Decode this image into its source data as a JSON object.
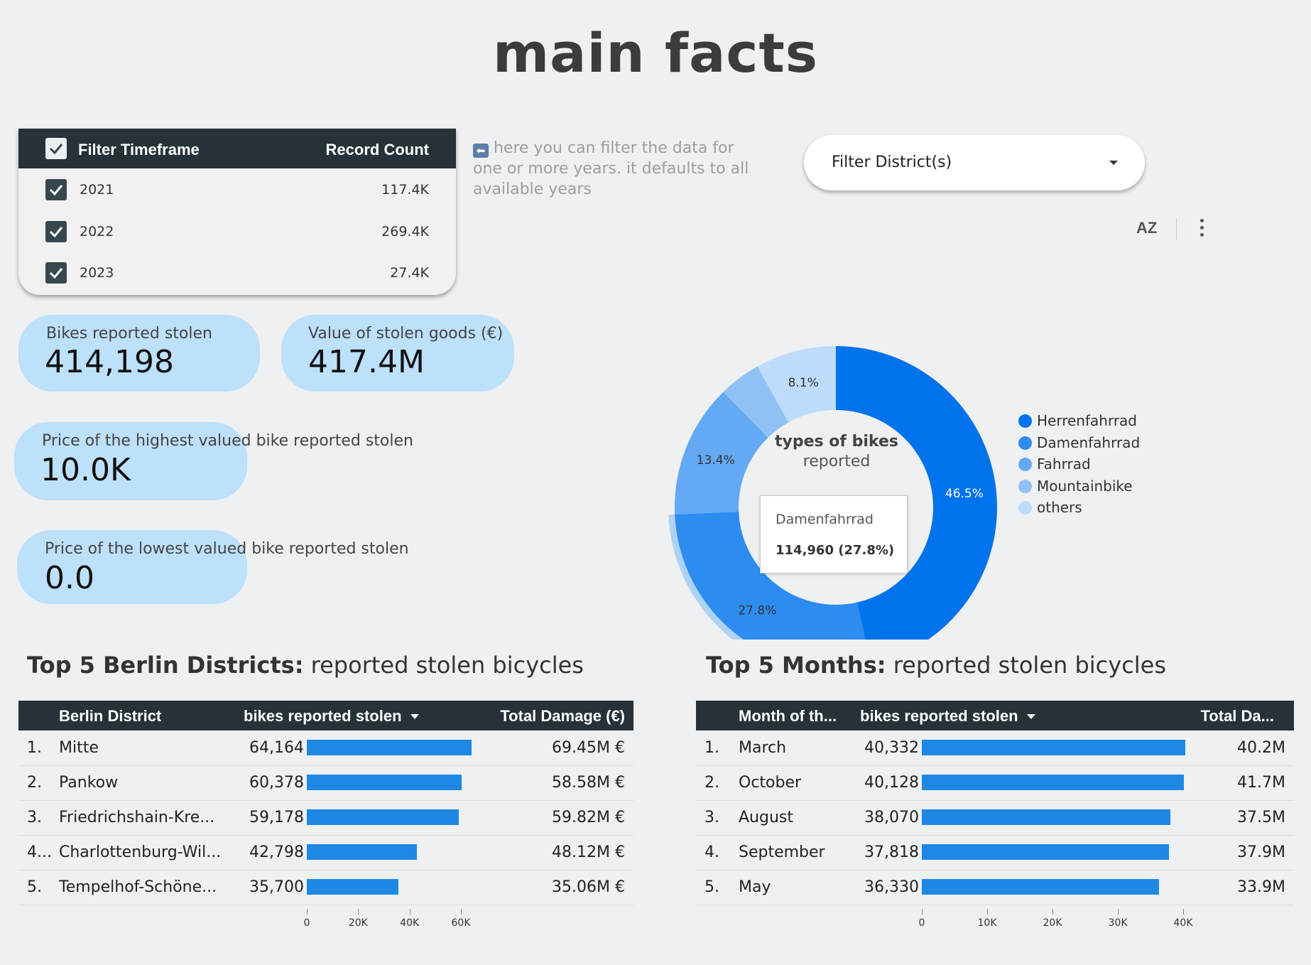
{
  "title": "main facts",
  "timeframe": {
    "header_label": "Filter Timeframe",
    "header_count": "Record Count",
    "rows": [
      {
        "label": "2021",
        "count": "117.4K"
      },
      {
        "label": "2022",
        "count": "269.4K"
      },
      {
        "label": "2023",
        "count": "27.4K"
      }
    ]
  },
  "hint": {
    "arrow": "⬅",
    "text": " here you can filter the data for one or more years. it defaults to all available years"
  },
  "district_filter": {
    "label": "Filter District(s)"
  },
  "toolbar": {
    "sort_icon": "sort-az-icon",
    "sort_glyph": "AZ",
    "more_icon": "more-vert-icon"
  },
  "kpis": {
    "stolen": {
      "label": "Bikes reported stolen",
      "value": "414,198"
    },
    "value": {
      "label": "Value of stolen goods (€)",
      "value": "417.4M"
    },
    "highest": {
      "label": "Price of the highest valued bike reported stolen",
      "value": "10.0K"
    },
    "lowest": {
      "label": "Price of the lowest valued bike reported stolen",
      "value": "0.0"
    }
  },
  "chart_data": [
    {
      "type": "pie",
      "title_bold": "types of bikes",
      "title_rest": "reported",
      "legend_position": "right",
      "slices": [
        {
          "name": "Herrenfahrrad",
          "value": 46.5,
          "label": "46.5%",
          "color": "#0072eb"
        },
        {
          "name": "Damenfahrrad",
          "value": 27.8,
          "label": "27.8%",
          "color": "#2d8cf0"
        },
        {
          "name": "Fahrrad",
          "value": 13.4,
          "label": "13.4%",
          "color": "#63a9f3"
        },
        {
          "name": "Mountainbike",
          "value": 4.2,
          "label": "",
          "color": "#8fc1f6"
        },
        {
          "name": "others",
          "value": 8.1,
          "label": "8.1%",
          "color": "#bcdcfa"
        }
      ],
      "highlighted": "Damenfahrrad",
      "tooltip": {
        "name": "Damenfahrrad",
        "value": "114,960 (27.8%)"
      }
    },
    {
      "type": "table",
      "title_bold": "Top 5 Berlin Districts:",
      "title_rest": " reported stolen bicycles",
      "columns": [
        "Berlin District",
        "bikes reported stolen",
        "Total Damage (€)"
      ],
      "rows": [
        {
          "rank": "1.",
          "name": "Mitte",
          "value": 64164,
          "value_label": "64,164",
          "damage": "69.45M €"
        },
        {
          "rank": "2.",
          "name": "Pankow",
          "value": 60378,
          "value_label": "60,378",
          "damage": "58.58M €"
        },
        {
          "rank": "3.",
          "name": "Friedrichshain-Kre...",
          "value": 59178,
          "value_label": "59,178",
          "damage": "59.82M €"
        },
        {
          "rank": "4...",
          "name": "Charlottenburg-Wil...",
          "value": 42798,
          "value_label": "42,798",
          "damage": "48.12M €"
        },
        {
          "rank": "5.",
          "name": "Tempelhof-Schöne...",
          "value": 35700,
          "value_label": "35,700",
          "damage": "35.06M €"
        }
      ],
      "axis_ticks": [
        {
          "v": 0,
          "label": "0"
        },
        {
          "v": 20000,
          "label": "20K"
        },
        {
          "v": 40000,
          "label": "40K"
        },
        {
          "v": 60000,
          "label": "60K"
        }
      ],
      "axis_max": 60000
    },
    {
      "type": "table",
      "title_bold": "Top 5 Months:",
      "title_rest": " reported stolen bicycles",
      "columns": [
        "Month of th...",
        "bikes reported stolen",
        "Total Da..."
      ],
      "rows": [
        {
          "rank": "1.",
          "name": "March",
          "value": 40332,
          "value_label": "40,332",
          "damage": "40.2M"
        },
        {
          "rank": "2.",
          "name": "October",
          "value": 40128,
          "value_label": "40,128",
          "damage": "41.7M"
        },
        {
          "rank": "3.",
          "name": "August",
          "value": 38070,
          "value_label": "38,070",
          "damage": "37.5M"
        },
        {
          "rank": "4.",
          "name": "September",
          "value": 37818,
          "value_label": "37,818",
          "damage": "37.9M"
        },
        {
          "rank": "5.",
          "name": "May",
          "value": 36330,
          "value_label": "36,330",
          "damage": "33.9M"
        }
      ],
      "axis_ticks": [
        {
          "v": 0,
          "label": "0"
        },
        {
          "v": 10000,
          "label": "10K"
        },
        {
          "v": 20000,
          "label": "20K"
        },
        {
          "v": 30000,
          "label": "30K"
        },
        {
          "v": 40000,
          "label": "40K"
        }
      ],
      "axis_max": 40000
    }
  ]
}
